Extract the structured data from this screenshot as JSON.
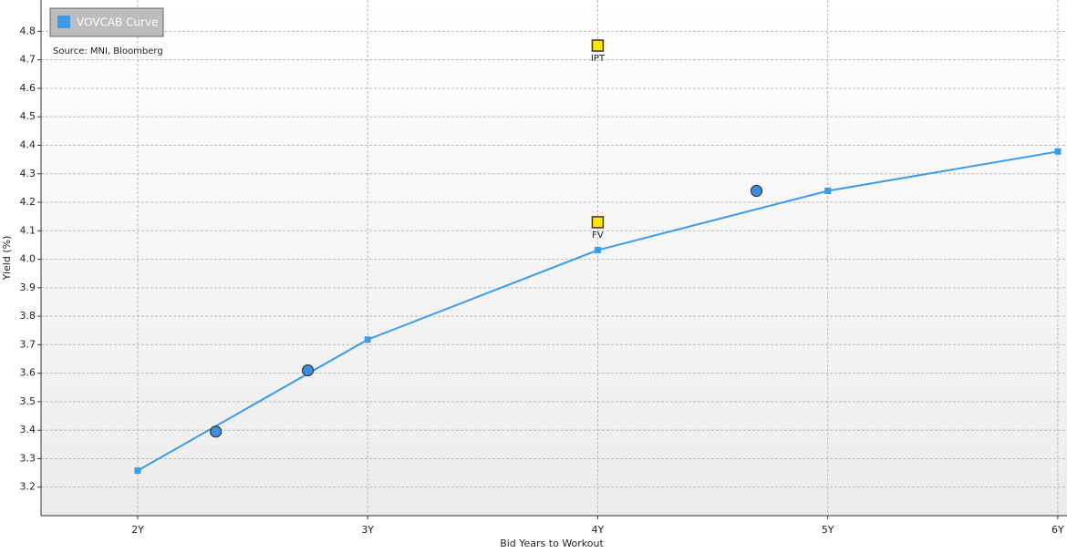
{
  "chart_data": {
    "type": "line",
    "x_label": "Bid Years to Workout",
    "y_label": "Yield (%)",
    "source": "Source: MNI, Bloomberg",
    "xlim": [
      1.58,
      6.04
    ],
    "ylim": [
      3.1,
      4.91
    ],
    "xticks": [
      {
        "value": 2,
        "label": "2Y"
      },
      {
        "value": 3,
        "label": "3Y"
      },
      {
        "value": 4,
        "label": "4Y"
      },
      {
        "value": 5,
        "label": "5Y"
      },
      {
        "value": 6,
        "label": "6Y"
      }
    ],
    "yticks": [
      3.2,
      3.3,
      3.4,
      3.5,
      3.6,
      3.7,
      3.8,
      3.9,
      {
        "value": 4,
        "label": "4.0"
      },
      4.1,
      4.2,
      4.3,
      4.4,
      4.5,
      4.6,
      4.7,
      4.8
    ],
    "grid": true,
    "legend": "top-left",
    "series": [
      {
        "name": "VOVCAB Curve",
        "color": "#3d9be9",
        "x": [
          2,
          3,
          4,
          5,
          6
        ],
        "values": [
          3.258,
          3.718,
          4.032,
          4.24,
          4.378
        ]
      }
    ],
    "points": {
      "color": "#3d8ee0",
      "x": [
        2.34,
        2.74,
        4.69
      ],
      "values": [
        3.395,
        3.61,
        4.24
      ]
    },
    "markers": {
      "color": "#ffe600",
      "labels": [
        "IPT",
        "FV"
      ],
      "x": [
        4,
        4
      ],
      "values": [
        4.75,
        4.13
      ]
    }
  }
}
